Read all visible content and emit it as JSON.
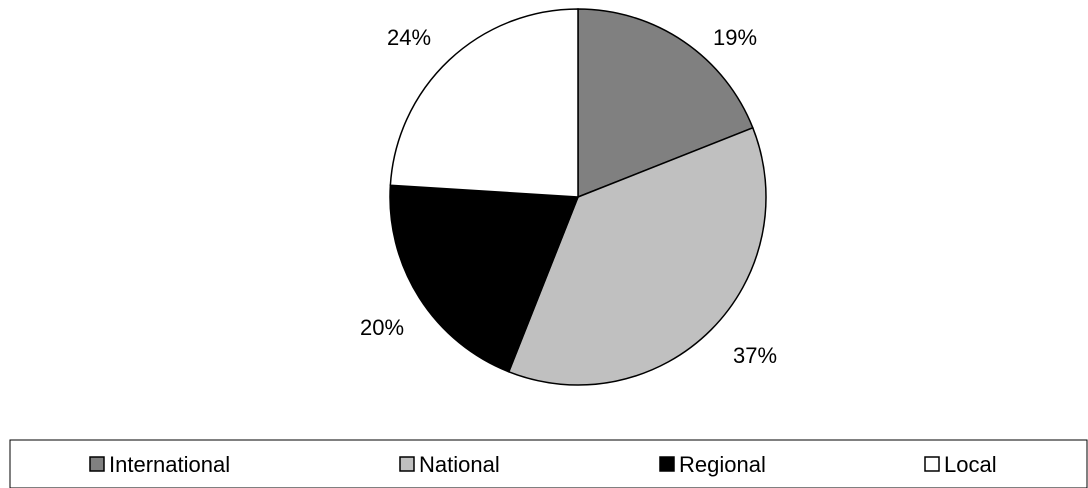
{
  "chart_data": {
    "type": "pie",
    "title": "",
    "start_angle": "12 o'clock",
    "direction": "clockwise",
    "legend_position": "bottom",
    "slices": [
      {
        "name": "International",
        "value": 19,
        "label": "19%",
        "color": "#808080"
      },
      {
        "name": "National",
        "value": 37,
        "label": "37%",
        "color": "#c0c0c0"
      },
      {
        "name": "Regional",
        "value": 20,
        "label": "20%",
        "color": "#000000"
      },
      {
        "name": "Local",
        "value": 24,
        "label": "24%",
        "color": "#ffffff"
      }
    ]
  }
}
